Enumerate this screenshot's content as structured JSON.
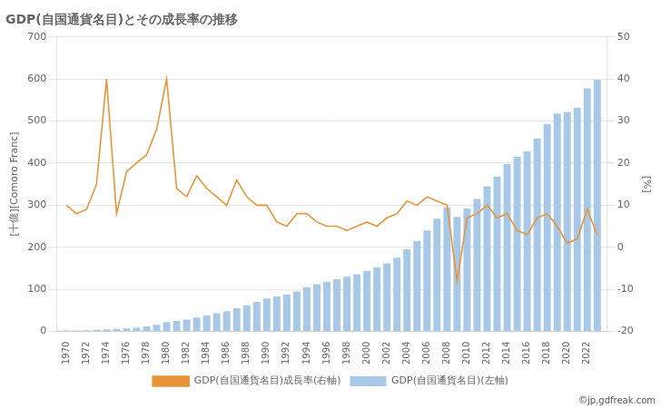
{
  "chart_data": {
    "type": "bar",
    "title": "GDP(自国通貨名目)とその成長率の推移",
    "y_label": "[十億][Comoro Franc]",
    "y2_label": "[%]",
    "annotations": [
      "©jp.gdfreak.com"
    ],
    "x": [
      1970,
      1971,
      1972,
      1973,
      1974,
      1975,
      1976,
      1977,
      1978,
      1979,
      1980,
      1981,
      1982,
      1983,
      1984,
      1985,
      1986,
      1987,
      1988,
      1989,
      1990,
      1991,
      1992,
      1993,
      1994,
      1995,
      1996,
      1997,
      1998,
      1999,
      2000,
      2001,
      2002,
      2003,
      2004,
      2005,
      2006,
      2007,
      2008,
      2009,
      2010,
      2011,
      2012,
      2013,
      2014,
      2015,
      2016,
      2017,
      2018,
      2019,
      2020,
      2021,
      2022,
      2023
    ],
    "xlim": [
      1969,
      2024
    ],
    "xticks": [
      1970,
      1972,
      1974,
      1976,
      1978,
      1980,
      1982,
      1984,
      1986,
      1988,
      1990,
      1992,
      1994,
      1996,
      1998,
      2000,
      2002,
      2004,
      2006,
      2008,
      2010,
      2012,
      2014,
      2016,
      2018,
      2020,
      2022
    ],
    "ylim": [
      0,
      700
    ],
    "yticks": [
      0,
      100,
      200,
      300,
      400,
      500,
      600,
      700
    ],
    "y2lim": [
      -20,
      50
    ],
    "y2ticks": [
      -20,
      -10,
      0,
      10,
      20,
      30,
      40,
      50
    ],
    "grid": true,
    "legend": "bottom",
    "series": [
      {
        "name": "GDP(自国通貨名目)(左軸)",
        "type": "bar",
        "color": "#a8c8e8",
        "values": [
          2,
          2,
          3,
          4,
          5,
          6,
          7,
          9,
          12,
          16,
          22,
          25,
          28,
          33,
          38,
          43,
          48,
          55,
          62,
          70,
          78,
          83,
          88,
          95,
          105,
          112,
          118,
          124,
          130,
          136,
          144,
          152,
          162,
          175,
          195,
          215,
          240,
          268,
          295,
          272,
          292,
          315,
          345,
          368,
          398,
          415,
          428,
          458,
          493,
          518,
          522,
          532,
          578,
          598
        ]
      },
      {
        "name": "GDP(自国通貨名目)成長率(右軸)",
        "type": "line",
        "color": "#e8943a",
        "marker": "none",
        "axis": "y2",
        "values": [
          10,
          8,
          9,
          15,
          40,
          8,
          18,
          20,
          22,
          28,
          40,
          14,
          12,
          17,
          14,
          12,
          10,
          16,
          12,
          10,
          10,
          6,
          5,
          8,
          8,
          6,
          5,
          5,
          4,
          5,
          6,
          5,
          7,
          8,
          11,
          10,
          12,
          11,
          10,
          -8,
          7,
          8,
          10,
          7,
          8,
          4,
          3,
          7,
          8,
          5,
          1,
          2,
          9,
          3
        ]
      }
    ]
  }
}
